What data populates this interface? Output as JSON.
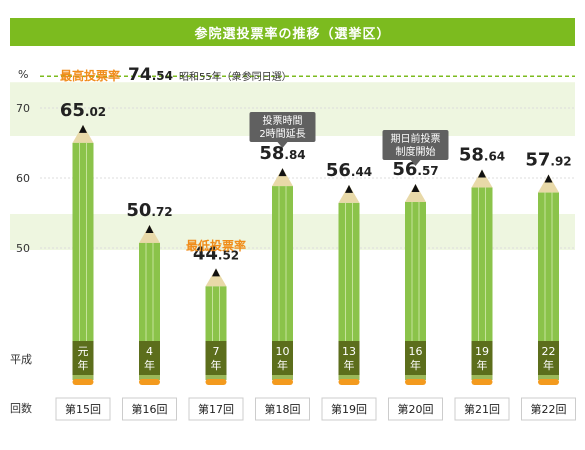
{
  "chart_data": {
    "type": "bar",
    "title": "参院選投票率の推移（選挙区）",
    "unit": "%",
    "ylim": [
      0,
      80
    ],
    "yticks": [
      50,
      60,
      70
    ],
    "row_label_heisei": "平成",
    "row_label_kaisu": "回数",
    "categories": [
      "第15回",
      "第16回",
      "第17回",
      "第18回",
      "第19回",
      "第20回",
      "第21回",
      "第22回"
    ],
    "era_labels": [
      [
        "元",
        "年"
      ],
      [
        "4",
        "年"
      ],
      [
        "7",
        "年"
      ],
      [
        "10",
        "年"
      ],
      [
        "13",
        "年"
      ],
      [
        "16",
        "年"
      ],
      [
        "19",
        "年"
      ],
      [
        "22",
        "年"
      ]
    ],
    "values": [
      65.02,
      50.72,
      44.52,
      58.84,
      56.44,
      56.57,
      58.64,
      57.92
    ],
    "value_labels": [
      [
        "65",
        ".02"
      ],
      [
        "50",
        ".72"
      ],
      [
        "44",
        ".52"
      ],
      [
        "58",
        ".84"
      ],
      [
        "56",
        ".44"
      ],
      [
        "56",
        ".57"
      ],
      [
        "58",
        ".64"
      ],
      [
        "57",
        ".92"
      ]
    ],
    "max_line": {
      "value": 74.54,
      "label": "最高投票率",
      "value_int": "74",
      "value_dec": ".54",
      "note": "昭和55年（衆参同日選）"
    },
    "min_label": "最低投票率",
    "min_index": 2,
    "callouts": [
      {
        "index": 3,
        "lines": [
          "投票時間",
          "2時間延長"
        ]
      },
      {
        "index": 5,
        "lines": [
          "期日前投票",
          "制度開始"
        ]
      }
    ],
    "colors": {
      "accent": "#7cbb1f",
      "bar": "#8bc34a",
      "bar_stripe": "#c5e39a",
      "tip": "#e8d9a8",
      "label_box": "#5c6e1c",
      "eraser": "#f39a1e",
      "highlight": "#f08c1a",
      "callout": "#606060",
      "band": "#eef6e0"
    }
  }
}
